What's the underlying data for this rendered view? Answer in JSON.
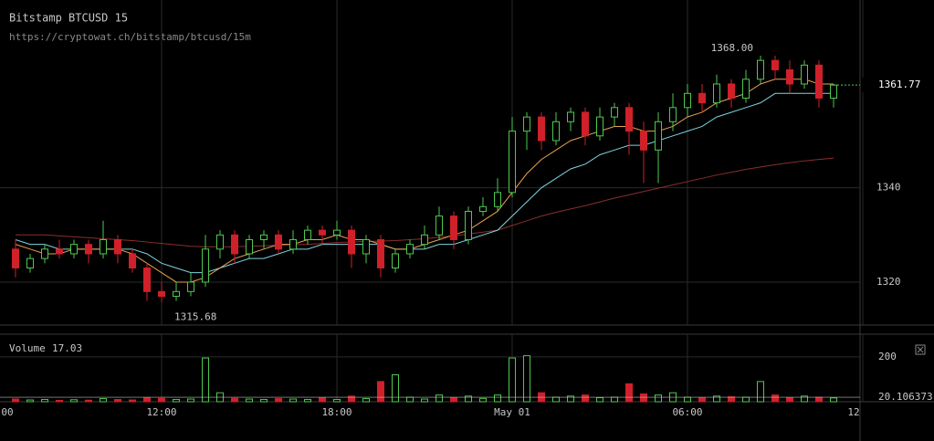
{
  "chart_data": {
    "type": "candlestick",
    "title": "Bitstamp BTCUSD 15",
    "subtitle": "https://cryptowat.ch/bitstamp/btcusd/15m",
    "categories": [
      "00",
      null,
      null,
      null,
      null,
      null,
      null,
      null,
      null,
      null,
      null,
      null,
      "12:00",
      null,
      null,
      null,
      null,
      null,
      null,
      null,
      null,
      null,
      null,
      null,
      "18:00",
      null,
      null,
      null,
      null,
      null,
      null,
      null,
      null,
      null,
      null,
      null,
      "May 01",
      null,
      null,
      null,
      null,
      null,
      null,
      null,
      null,
      null,
      null,
      null,
      "06:00",
      null,
      null,
      null,
      null,
      null,
      null,
      null,
      null,
      null,
      null,
      null,
      "12"
    ],
    "open": [
      null,
      null,
      1327,
      1323,
      1325,
      1327,
      1326,
      1328,
      1326,
      1329,
      1326,
      1323,
      1318,
      1317,
      1318,
      1320,
      1327,
      1330,
      1326,
      1329,
      1330,
      1327,
      1329,
      1331,
      1330,
      1331,
      1326,
      1329,
      1323,
      1326,
      1328,
      1330,
      1334,
      1329,
      1335,
      1336,
      1339,
      1352,
      1355,
      1350,
      1354,
      1356,
      1351,
      1355,
      1357,
      1352,
      1348,
      1354,
      1357,
      1360,
      1358,
      1362,
      1359,
      1363,
      1367,
      1365,
      1362,
      1366,
      1359,
      null,
      null
    ],
    "high": [
      null,
      null,
      1329,
      1326,
      1328,
      1329,
      1329,
      1329,
      1333,
      1330,
      1327,
      1324,
      1320,
      1320,
      1322,
      1330,
      1331,
      1331,
      1330,
      1331,
      1331,
      1331,
      1332,
      1332,
      1333,
      1332,
      1330,
      1330,
      1327,
      1329,
      1332,
      1336,
      1335,
      1336,
      1338,
      1342,
      1355,
      1356,
      1356,
      1356,
      1357,
      1357,
      1357,
      1358,
      1358,
      1354,
      1356,
      1360,
      1362,
      1362,
      1364,
      1363,
      1365,
      1368,
      1368,
      1367,
      1367,
      1367,
      1362,
      null,
      null
    ],
    "low": [
      null,
      null,
      1321,
      1322,
      1324,
      1325,
      1325,
      1324,
      1325,
      1324,
      1322,
      1316,
      1315.68,
      1316,
      1317,
      1319,
      1325,
      1324,
      1325,
      1327,
      1326,
      1326,
      1328,
      1328,
      1329,
      1323,
      1324,
      1321,
      1322,
      1325,
      1327,
      1329,
      1327,
      1328,
      1334,
      1335,
      1338,
      1348,
      1348,
      1349,
      1352,
      1349,
      1350,
      1353,
      1347,
      1341,
      1341,
      1352,
      1355,
      1356,
      1357,
      1357,
      1358,
      1362,
      1363,
      1360,
      1361,
      1357,
      1357,
      null,
      null
    ],
    "close": [
      null,
      null,
      1323,
      1325,
      1327,
      1326,
      1328,
      1326,
      1329,
      1326,
      1323,
      1318,
      1317,
      1318,
      1320,
      1327,
      1330,
      1326,
      1329,
      1330,
      1327,
      1329,
      1331,
      1330,
      1331,
      1326,
      1329,
      1323,
      1326,
      1328,
      1330,
      1334,
      1329,
      1335,
      1336,
      1339,
      1352,
      1355,
      1350,
      1354,
      1356,
      1351,
      1355,
      1357,
      1352,
      1348,
      1354,
      1357,
      1360,
      1358,
      1362,
      1359,
      1363,
      1367,
      1365,
      1362,
      1366,
      1359,
      1361.77,
      null,
      null
    ],
    "volume": [
      null,
      null,
      12,
      8,
      10,
      6,
      9,
      7,
      14,
      10,
      8,
      18,
      15,
      10,
      12,
      195,
      40,
      15,
      12,
      10,
      14,
      12,
      10,
      18,
      10,
      25,
      14,
      90,
      120,
      20,
      12,
      30,
      18,
      25,
      15,
      30,
      195,
      205,
      40,
      20,
      25,
      30,
      18,
      20,
      80,
      35,
      30,
      40,
      20,
      18,
      25,
      22,
      20,
      90,
      30,
      18,
      25,
      20,
      17.03,
      null,
      null
    ],
    "series": [
      {
        "color": "#8b2e2e",
        "values": [
          null,
          null,
          1330,
          1330,
          1330,
          1329.8,
          1329.6,
          1329.4,
          1329.2,
          1329,
          1328.8,
          1328.5,
          1328.2,
          1327.9,
          1327.6,
          1327.5,
          1327.5,
          1327.5,
          1327.6,
          1327.7,
          1327.8,
          1327.9,
          1328,
          1328.2,
          1328.4,
          1328.5,
          1328.6,
          1328.7,
          1328.8,
          1329,
          1329.2,
          1329.5,
          1329.8,
          1330.2,
          1330.6,
          1331,
          1332,
          1333,
          1334,
          1334.8,
          1335.5,
          1336.2,
          1337,
          1337.8,
          1338.5,
          1339.2,
          1339.9,
          1340.6,
          1341.3,
          1342,
          1342.7,
          1343.3,
          1343.9,
          1344.4,
          1344.9,
          1345.3,
          1345.7,
          1346,
          1346.3,
          null,
          null
        ]
      },
      {
        "color": "#7fd4e0",
        "values": [
          null,
          null,
          1329,
          1328,
          1328,
          1327,
          1327,
          1327,
          1327,
          1327,
          1327,
          1326,
          1324,
          1323,
          1322,
          1322,
          1323,
          1324,
          1325,
          1325,
          1326,
          1327,
          1327,
          1328,
          1328,
          1328,
          1328,
          1328,
          1327,
          1327,
          1327,
          1328,
          1328,
          1329,
          1330,
          1331,
          1334,
          1337,
          1340,
          1342,
          1344,
          1345,
          1347,
          1348,
          1349,
          1349,
          1350,
          1351,
          1352,
          1353,
          1355,
          1356,
          1357,
          1358,
          1360,
          1360,
          1360,
          1360,
          1360,
          null,
          null
        ]
      },
      {
        "color": "#e8a050",
        "values": [
          null,
          null,
          1328,
          1327,
          1326,
          1326,
          1327,
          1327,
          1327,
          1327,
          1326,
          1324,
          1322,
          1320,
          1320,
          1321,
          1323,
          1325,
          1326,
          1327,
          1328,
          1328,
          1329,
          1329,
          1330,
          1329,
          1329,
          1328,
          1327,
          1327,
          1328,
          1329,
          1330,
          1331,
          1333,
          1335,
          1339,
          1343,
          1346,
          1348,
          1350,
          1351,
          1352,
          1353,
          1353,
          1352,
          1352,
          1353,
          1355,
          1356,
          1358,
          1359,
          1360,
          1362,
          1363,
          1363,
          1363,
          1362,
          1362,
          null,
          null
        ]
      }
    ],
    "ylim": [
      1310.9,
      1379.8
    ],
    "yticks": [
      1320,
      1340
    ],
    "volume_title": "Volume",
    "volume_ylim": [
      0,
      301
    ],
    "volume_yticks": [
      200
    ],
    "volume_ma_last": 20.106373,
    "high_label": "1368.00",
    "low_label": "1315.68",
    "up_color": "#4ec94e",
    "down_color": "#d0202a",
    "grid": true
  }
}
